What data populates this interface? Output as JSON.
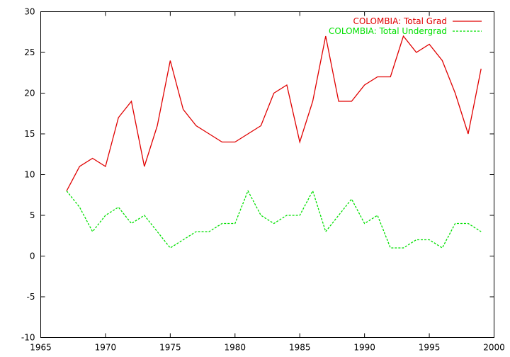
{
  "chart_data": {
    "type": "line",
    "title": "",
    "xlabel": "",
    "ylabel": "",
    "xlim": [
      1965,
      2000
    ],
    "ylim": [
      -10,
      30
    ],
    "x_ticks": [
      1965,
      1970,
      1975,
      1980,
      1985,
      1990,
      1995,
      2000
    ],
    "y_ticks": [
      -10,
      -5,
      0,
      5,
      10,
      15,
      20,
      25,
      30
    ],
    "grid": false,
    "legend_position": "top-right",
    "x": [
      1967,
      1968,
      1969,
      1970,
      1971,
      1972,
      1973,
      1974,
      1975,
      1976,
      1977,
      1978,
      1979,
      1980,
      1981,
      1982,
      1983,
      1984,
      1985,
      1986,
      1987,
      1988,
      1989,
      1990,
      1991,
      1992,
      1993,
      1994,
      1995,
      1996,
      1997,
      1998,
      1999
    ],
    "series": [
      {
        "name": "COLOMBIA: Total Grad",
        "color": "#e00000",
        "dash": "solid",
        "values": [
          8,
          11,
          12,
          11,
          17,
          19,
          11,
          16,
          24,
          18,
          16,
          15,
          14,
          14,
          15,
          16,
          20,
          21,
          14,
          19,
          27,
          19,
          19,
          21,
          22,
          22,
          27,
          25,
          26,
          24,
          20,
          15,
          23
        ]
      },
      {
        "name": "COLOMBIA: Total Undergrad",
        "color": "#00e000",
        "dash": "dashed",
        "values": [
          8,
          6,
          3,
          5,
          6,
          4,
          5,
          3,
          1,
          2,
          3,
          3,
          4,
          4,
          8,
          5,
          4,
          5,
          5,
          8,
          3,
          5,
          7,
          4,
          5,
          1,
          1,
          2,
          2,
          1,
          4,
          4,
          3
        ]
      }
    ]
  }
}
